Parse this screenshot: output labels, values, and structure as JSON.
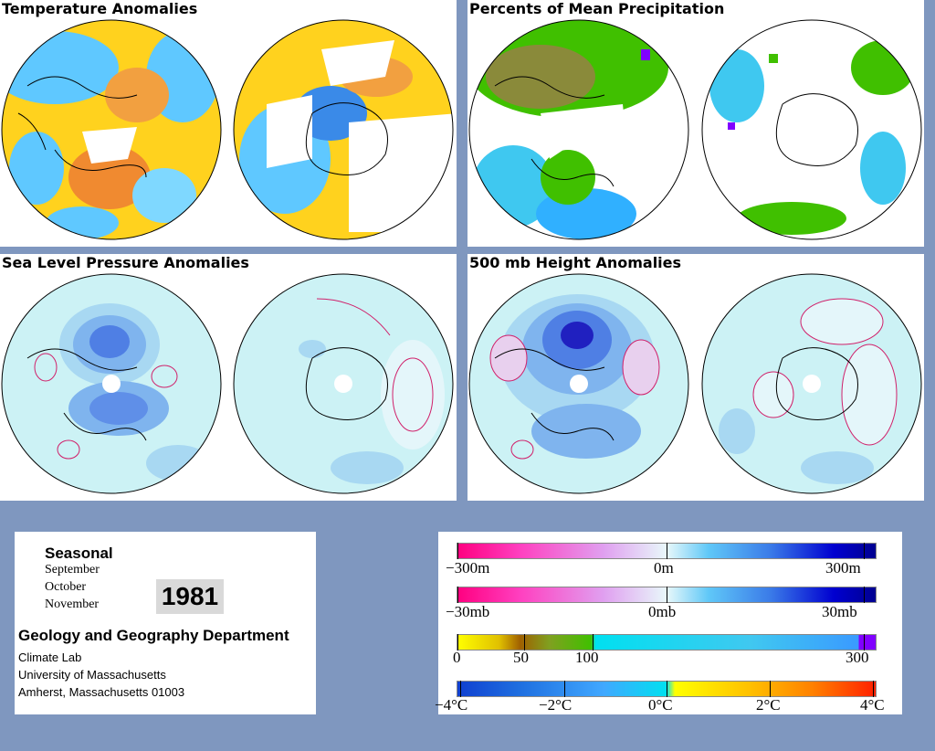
{
  "panels": {
    "temperature": {
      "title": "Temperature Anomalies"
    },
    "precipitation": {
      "title": "Percents of Mean Precipitation"
    },
    "sea_level_pressure": {
      "title": "Sea Level Pressure Anomalies"
    },
    "height_500mb": {
      "title": "500 mb Height Anomalies"
    }
  },
  "info": {
    "seasonal": "Seasonal",
    "months": [
      "September",
      "October",
      "November"
    ],
    "year": "1981",
    "department": "Geology and Geography Department",
    "address": [
      "Climate Lab",
      "University of Massachusetts",
      "Amherst, Massachusetts 01003"
    ]
  },
  "legends": {
    "height": {
      "labels": [
        "−300m",
        "0m",
        "300m"
      ]
    },
    "pressure": {
      "labels": [
        "−30mb",
        "0mb",
        "30mb"
      ]
    },
    "precip": {
      "labels": [
        "0",
        "50",
        "100",
        "300"
      ]
    },
    "temp": {
      "labels": [
        "−4°C",
        "−2°C",
        "0°C",
        "2°C",
        "4°C"
      ]
    }
  },
  "colors": {
    "background": "#7f97bf",
    "cold": "#1f6fe0",
    "neutral": "#00e0f0",
    "warm": "#ffe000",
    "hot": "#ff3000",
    "pressure_low": "#0000b0",
    "pressure_high": "#ff0080",
    "precip_dry": "#ffff00",
    "precip_mid": "#40c000",
    "precip_wet": "#8000ff"
  }
}
